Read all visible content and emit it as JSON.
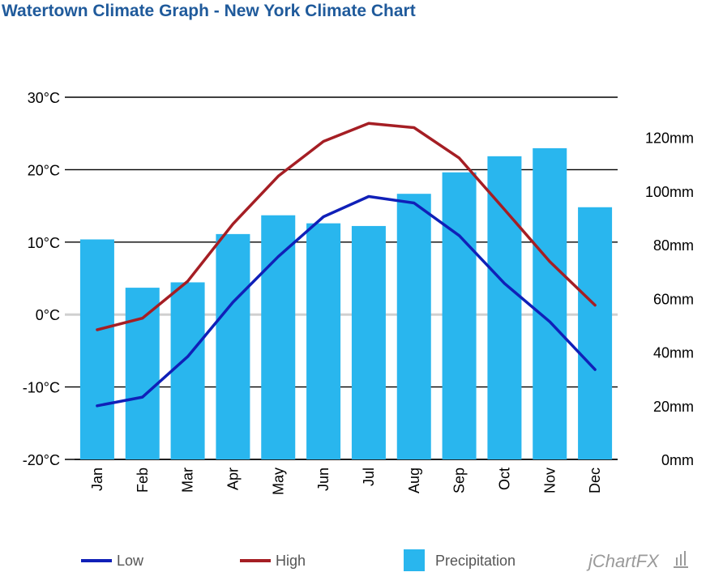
{
  "title": "Watertown Climate Graph - New York Climate Chart",
  "brand": "jChartFX",
  "chart_data": {
    "type": "bar",
    "categories": [
      "Jan",
      "Feb",
      "Mar",
      "Apr",
      "May",
      "Jun",
      "Jul",
      "Aug",
      "Sep",
      "Oct",
      "Nov",
      "Dec"
    ],
    "series": [
      {
        "name": "Precipitation",
        "type": "bar",
        "axis": "right",
        "color": "#29b6ee",
        "values": [
          82,
          64,
          66,
          84,
          91,
          88,
          87,
          99,
          107,
          113,
          116,
          94
        ]
      },
      {
        "name": "Low",
        "type": "line",
        "axis": "left",
        "color": "#1020b8",
        "values": [
          -12.6,
          -11.4,
          -5.8,
          1.7,
          8.0,
          13.5,
          16.3,
          15.4,
          10.9,
          4.3,
          -1.0,
          -7.6
        ]
      },
      {
        "name": "High",
        "type": "line",
        "axis": "left",
        "color": "#a51e24",
        "values": [
          -2.1,
          -0.5,
          4.6,
          12.5,
          19.1,
          23.9,
          26.4,
          25.8,
          21.6,
          14.5,
          7.3,
          1.3
        ]
      }
    ],
    "y_left": {
      "ticks": [
        "30°C",
        "20°C",
        "10°C",
        "0°C",
        "-10°C",
        "-20°C"
      ],
      "min": -20,
      "max": 30
    },
    "y_right": {
      "ticks": [
        "120mm",
        "100mm",
        "80mm",
        "60mm",
        "40mm",
        "20mm",
        "0mm"
      ],
      "min": 0,
      "max": 135
    },
    "legend": {
      "position": "bottom",
      "items": [
        "Low",
        "High",
        "Precipitation"
      ]
    },
    "grid": true
  }
}
